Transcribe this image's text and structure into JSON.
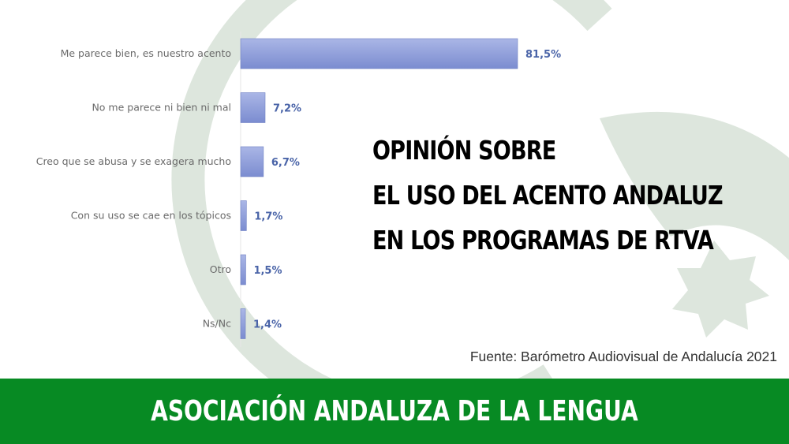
{
  "headline": {
    "lines": [
      "OPINIÓN SOBRE",
      "EL USO DEL ACENTO ANDALUZ",
      "EN LOS PROGRAMAS DE RTVA"
    ]
  },
  "source": "Fuente: Barómetro Audiovisual de Andalucía 2021",
  "footer": {
    "text": "ASOCIACIÓN ANDALUZA DE LA LENGUA"
  },
  "colors": {
    "bar": "#8a9ad6",
    "value_text": "#4a64a8",
    "footer_bg": "#078a23",
    "emblem": "#dce6dc"
  },
  "chart_data": {
    "type": "bar",
    "orientation": "horizontal",
    "categories": [
      "Me parece bien, es nuestro acento",
      "No me parece ni bien ni mal",
      "Creo que se abusa y se exagera mucho",
      "Con su uso se cae en los tópicos",
      "Otro",
      "Ns/Nc"
    ],
    "values": [
      81.5,
      7.2,
      6.7,
      1.7,
      1.5,
      1.4
    ],
    "value_labels": [
      "81,5%",
      "7,2%",
      "6,7%",
      "1,7%",
      "1,5%",
      "1,4%"
    ],
    "xlim": [
      0,
      81.5
    ],
    "grid": false,
    "legend": "none"
  }
}
